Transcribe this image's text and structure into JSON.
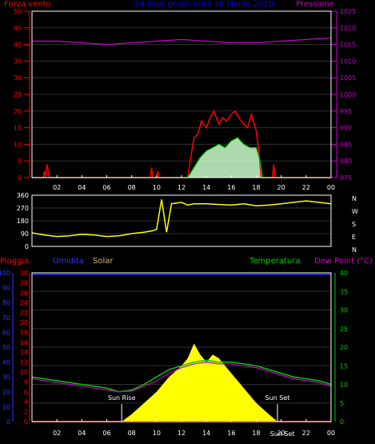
{
  "title": "24 hour graph until  30 Marzo 2020",
  "colors": {
    "background": "#000000",
    "frame": "#ffffff",
    "grid": "#303030",
    "wind": "#ff0000",
    "wind_avg": "#00cc00",
    "wind_fill": "#ccffcc",
    "pressure": "#cc00cc",
    "direction": "#ffff00",
    "rain": "#ff0000",
    "humidity": "#3333ff",
    "solar": "#ffff00",
    "temperature": "#00cc00",
    "dewpoint": "#cc00cc",
    "title": "#0000ff"
  },
  "chart_data": [
    {
      "type": "line",
      "name": "wind-pressure",
      "left_label": "Forza vento",
      "right_label": "Pressione",
      "ylim": [
        0,
        50
      ],
      "y2lim": [
        975,
        1025
      ],
      "left_ticks": [
        "0",
        "5",
        "10",
        "15",
        "20",
        "25",
        "30",
        "35",
        "40",
        "45",
        "50"
      ],
      "right_ticks": [
        "975",
        "980",
        "985",
        "990",
        "995",
        "1000",
        "1005",
        "1010",
        "1015",
        "1020",
        "1025"
      ],
      "x_ticks": [
        "02",
        "04",
        "06",
        "08",
        "10",
        "12",
        "14",
        "16",
        "18",
        "20",
        "22",
        "00"
      ],
      "x_range_hours": [
        0,
        24
      ],
      "wind_gust": {
        "x": [
          0,
          0.9,
          1.0,
          1.1,
          1.2,
          1.4,
          1.5,
          9.5,
          9.6,
          9.7,
          10.0,
          10.1,
          10.2,
          12.5,
          12.7,
          13.0,
          13.3,
          13.6,
          14.0,
          14.3,
          14.6,
          15.0,
          15.3,
          15.6,
          16.0,
          16.3,
          16.6,
          17.0,
          17.3,
          17.6,
          18.0,
          18.2,
          18.4,
          19.3,
          19.4,
          19.5,
          24
        ],
        "y": [
          0,
          0,
          2,
          0,
          4,
          0,
          0,
          0,
          3,
          0,
          0,
          2,
          0,
          0,
          5,
          12,
          13,
          17,
          15,
          18,
          20,
          16,
          18,
          17,
          19,
          20,
          18,
          16,
          15,
          19,
          14,
          8,
          0,
          0,
          4,
          0,
          0
        ]
      },
      "wind_avg": {
        "x": [
          0,
          12.5,
          13.0,
          13.5,
          14.0,
          14.5,
          15.0,
          15.5,
          16.0,
          16.5,
          17.0,
          17.5,
          18.0,
          18.3,
          18.5,
          24
        ],
        "y": [
          0,
          0,
          3,
          6,
          8,
          9,
          10,
          9,
          11,
          12,
          10,
          9,
          9,
          5,
          0,
          0
        ]
      },
      "pressure": {
        "x": [
          0,
          2,
          4,
          6,
          8,
          10,
          12,
          14,
          16,
          18,
          20,
          22,
          24
        ],
        "y": [
          1016,
          1016,
          1015.5,
          1015,
          1015.5,
          1016,
          1016.5,
          1016,
          1015.5,
          1015.5,
          1016,
          1016.5,
          1017
        ]
      }
    },
    {
      "type": "scatter",
      "name": "wind-direction",
      "ylim": [
        0,
        360
      ],
      "left_ticks": [
        "0",
        "90",
        "180",
        "270",
        "360"
      ],
      "right_labels": [
        "N",
        "W",
        "S",
        "E",
        "N"
      ],
      "x_ticks": [
        "02",
        "04",
        "06",
        "08",
        "10",
        "12",
        "14",
        "16",
        "18",
        "20",
        "22",
        "00"
      ],
      "direction": {
        "x": [
          0,
          1,
          2,
          3,
          4,
          5,
          6,
          7,
          8,
          9,
          9.7,
          10,
          10.4,
          10.8,
          11.2,
          12,
          12.5,
          13,
          14,
          15,
          16,
          17,
          18,
          19,
          20,
          21,
          22,
          23,
          24
        ],
        "y": [
          95,
          80,
          70,
          75,
          85,
          80,
          70,
          75,
          90,
          100,
          110,
          120,
          330,
          100,
          300,
          310,
          290,
          300,
          300,
          295,
          290,
          300,
          285,
          290,
          300,
          310,
          320,
          310,
          300
        ]
      }
    },
    {
      "type": "area",
      "name": "rain-humidity-solar-temp",
      "labels": {
        "rain": "Pioggia",
        "humidity": "Umidita",
        "solar": "Solar",
        "temperature": "Temperatura",
        "dewpoint": "Dew Point (°C)"
      },
      "humidity_ticks": [
        "0",
        "10",
        "20",
        "30",
        "40",
        "50",
        "60",
        "70",
        "80",
        "90",
        "100"
      ],
      "rain_ticks": [
        "0",
        "2",
        "4",
        "6",
        "8",
        "10",
        "12",
        "14",
        "16",
        "18",
        "20",
        "22",
        "24",
        "26",
        "28",
        "30"
      ],
      "temp_ticks": [
        "0",
        "5",
        "10",
        "15",
        "20",
        "25",
        "30",
        "35",
        "40"
      ],
      "temp_lim": [
        0,
        40
      ],
      "rain_lim": [
        0,
        30
      ],
      "humidity_lim": [
        0,
        100
      ],
      "x_ticks": [
        "02",
        "04",
        "06",
        "08",
        "10",
        "12",
        "14",
        "16",
        "18",
        "20",
        "22",
        "00"
      ],
      "annotations": [
        "Sun Rise",
        "Sun Set",
        "Sun Set"
      ],
      "annotation_hours": [
        7.2,
        19.7,
        20.1
      ],
      "temperature": {
        "x": [
          0,
          2,
          4,
          6,
          7,
          8,
          9,
          10,
          11,
          12,
          13,
          14,
          15,
          16,
          17,
          18,
          19,
          20,
          21,
          22,
          23,
          24
        ],
        "y": [
          12,
          11,
          10,
          9,
          8,
          8.5,
          10,
          12,
          14,
          15,
          16,
          16.5,
          16,
          16,
          15.5,
          15,
          14,
          13,
          12,
          11.5,
          11,
          10
        ]
      },
      "dewpoint": {
        "x": [
          0,
          2,
          4,
          6,
          7,
          8,
          9,
          10,
          11,
          12,
          13,
          14,
          15,
          16,
          17,
          18,
          19,
          20,
          21,
          22,
          23,
          24
        ],
        "y": [
          11.5,
          10.5,
          9.5,
          8.5,
          8,
          8.2,
          9.5,
          11,
          13,
          14.5,
          15.5,
          16,
          15.5,
          15.5,
          15,
          14.5,
          13.5,
          12.5,
          11.5,
          11,
          10.5,
          9.5
        ]
      },
      "humidity": {
        "x": [
          0,
          24
        ],
        "y": [
          99,
          99
        ]
      },
      "rain": {
        "x": [
          0,
          24
        ],
        "y": [
          0,
          0
        ]
      },
      "solar": {
        "x": [
          7.2,
          8,
          9,
          10,
          11,
          12,
          12.5,
          13,
          13.5,
          14,
          14.5,
          15,
          15.5,
          16,
          17,
          18,
          19,
          19.7
        ],
        "y": [
          0,
          2,
          5,
          8,
          12,
          15,
          17,
          21,
          18,
          16,
          18,
          17,
          15,
          13,
          9,
          5,
          2,
          0
        ]
      }
    }
  ]
}
